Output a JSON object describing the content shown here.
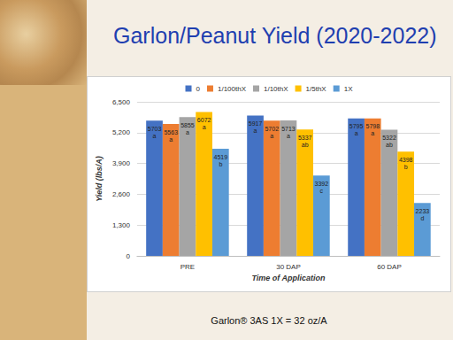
{
  "chart_data": {
    "type": "bar",
    "title": "Garlon/Peanut Yield (2020-2022)",
    "x_label": "Time of Application",
    "y_label": "Yield (lbs/A)",
    "annotations": [
      "Garlon® 3AS 1X = 32 oz/A"
    ],
    "categories": [
      "PRE",
      "30 DAP",
      "60 DAP"
    ],
    "series": [
      {
        "name": "0",
        "color": "#4472c4",
        "values": [
          5703,
          5917,
          5795
        ],
        "value_labels": [
          "5703\na",
          "5917\na",
          "5795\na"
        ]
      },
      {
        "name": "1/100thX",
        "color": "#ed7d31",
        "values": [
          5563,
          5702,
          5798
        ],
        "value_labels": [
          "5563\na",
          "5702\na",
          "5798\na"
        ]
      },
      {
        "name": "1/10thX",
        "color": "#a5a5a5",
        "values": [
          5855,
          5713,
          5322
        ],
        "value_labels": [
          "5855\na",
          "5713\na",
          "5322\nab"
        ]
      },
      {
        "name": "1/5thX",
        "color": "#ffc000",
        "values": [
          6072,
          5337,
          4398
        ],
        "value_labels": [
          "6072\na",
          "5337\nab",
          "4398\nb"
        ]
      },
      {
        "name": "1X",
        "color": "#5b9bd5",
        "values": [
          4519,
          3392,
          2233
        ],
        "value_labels": [
          "4519\nb",
          "3392\nc",
          "2233\nd"
        ]
      }
    ],
    "ylim": [
      0,
      6500
    ],
    "yticks": [
      0,
      1300,
      2600,
      3900,
      5200,
      6500
    ],
    "grid": true,
    "legend": "top",
    "data_labels": true
  }
}
